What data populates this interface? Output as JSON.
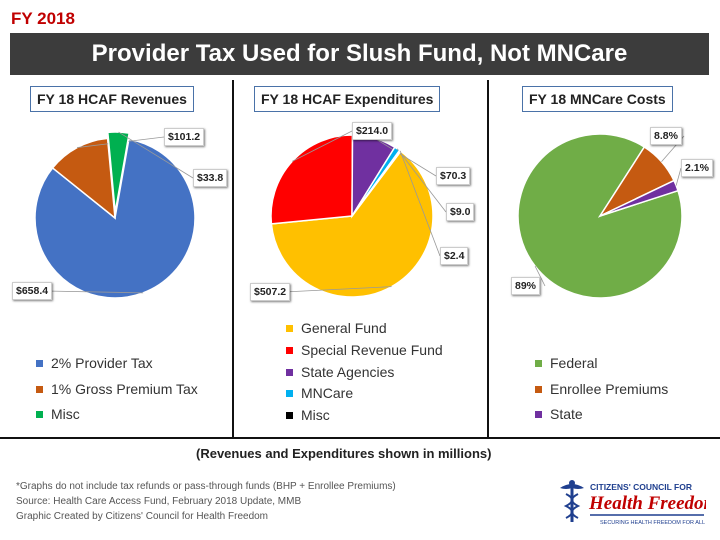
{
  "header": {
    "fy_label": "FY 2018",
    "title": "Provider Tax  Used for Slush Fund, Not MNCare"
  },
  "chart_data": [
    {
      "type": "pie",
      "title": "FY 18 HCAF Revenues",
      "categories": [
        "2% Provider Tax",
        "1% Gross Premium Tax",
        "Misc"
      ],
      "values": [
        658.4,
        101.2,
        33.8
      ],
      "data_labels": [
        "$658.4",
        "$101.2",
        "$33.8"
      ],
      "colors": [
        "#4472c4",
        "#c55a11",
        "#00b050"
      ]
    },
    {
      "type": "pie",
      "title": "FY 18 HCAF Expenditures",
      "categories": [
        "General Fund",
        "Special Revenue Fund",
        "State Agencies",
        "MNCare",
        "Misc"
      ],
      "values": [
        507.2,
        214.0,
        70.3,
        9.0,
        2.4
      ],
      "data_labels": [
        "$507.2",
        "$214.0",
        "$70.3",
        "$9.0",
        "$2.4"
      ],
      "colors": [
        "#ffc000",
        "#ff0000",
        "#7030a0",
        "#00b0f0",
        "#000000"
      ]
    },
    {
      "type": "pie",
      "title": "FY 18 MNCare Costs",
      "categories": [
        "Federal",
        "Enrollee Premiums",
        "State"
      ],
      "values": [
        89,
        8.8,
        2.1
      ],
      "data_labels": [
        "89%",
        "8.8%",
        "2.1%"
      ],
      "colors": [
        "#70ad47",
        "#c55a11",
        "#7030a0"
      ]
    }
  ],
  "note": "(Revenues and Expenditures shown in millions)",
  "footer": {
    "line1": "*Graphs do not include tax refunds or pass-through funds (BHP + Enrollee Premiums)",
    "line2": "Source: Health Care Access Fund, February 2018 Update, MMB",
    "line3": "Graphic Created by Citizens' Council for Health Freedom"
  },
  "logo": {
    "top_text": "CITIZENS' COUNCIL FOR",
    "main_text": "Health Freedom",
    "tagline": "SECURING HEALTH FREEDOM FOR ALL",
    "icon": "caduceus-icon"
  }
}
